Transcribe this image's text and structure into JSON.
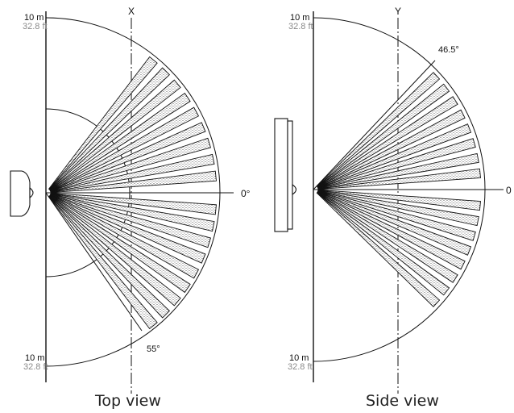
{
  "top_view": {
    "caption": "Top view",
    "range_top_m": "10 m",
    "range_top_ft": "32.8 ft",
    "range_bottom_m": "10 m",
    "range_bottom_ft": "32.8 ft",
    "centerline_label": "X",
    "zero_angle_label": "0°",
    "max_angle_label": "55°",
    "half_angle_deg": 55,
    "zones_upper": 9,
    "zones_lower": 9
  },
  "side_view": {
    "caption": "Side view",
    "range_top_m": "10 m",
    "range_top_ft": "32.8 ft",
    "range_bottom_m": "10 m",
    "range_bottom_ft": "32.8 ft",
    "centerline_label": "Y",
    "zero_angle_label": "0",
    "max_angle_label": "46.5°",
    "half_angle_deg": 46.5,
    "zones_upper": 8,
    "zones_lower": 8
  },
  "colors": {
    "ink": "#111111",
    "feet_text": "#8a8a8a",
    "stipple": "#555555"
  }
}
